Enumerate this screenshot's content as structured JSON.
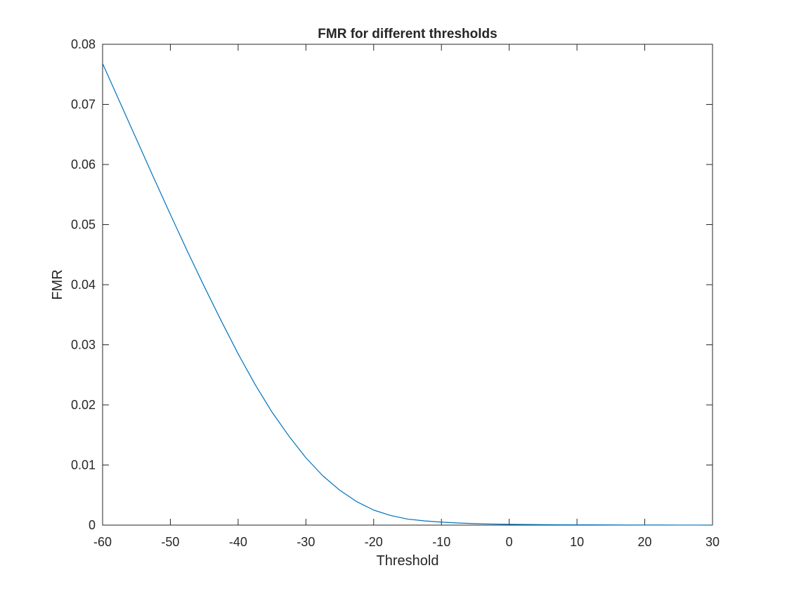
{
  "chart_data": {
    "type": "line",
    "title": "FMR for different thresholds",
    "xlabel": "Threshold",
    "ylabel": "FMR",
    "xlim": [
      -60,
      30
    ],
    "ylim": [
      0,
      0.08
    ],
    "xticks": [
      -60,
      -50,
      -40,
      -30,
      -20,
      -10,
      0,
      10,
      20,
      30
    ],
    "xtick_labels": [
      "-60",
      "-50",
      "-40",
      "-30",
      "-20",
      "-10",
      "0",
      "10",
      "20",
      "30"
    ],
    "yticks": [
      0,
      0.01,
      0.02,
      0.03,
      0.04,
      0.05,
      0.06,
      0.07,
      0.08
    ],
    "ytick_labels": [
      "0",
      "0.01",
      "0.02",
      "0.03",
      "0.04",
      "0.05",
      "0.06",
      "0.07",
      "0.08"
    ],
    "grid": false,
    "box": true,
    "series": [
      {
        "color": "#0072BD",
        "x": [
          -60,
          -57.5,
          -55,
          -52.5,
          -50,
          -47.5,
          -45,
          -42.5,
          -40,
          -37.5,
          -35,
          -32.5,
          -30,
          -27.5,
          -25,
          -22.5,
          -20,
          -17.5,
          -15,
          -12.5,
          -10,
          -7.5,
          -5,
          -2.5,
          0,
          2.5,
          5,
          7.5,
          10,
          12.5,
          15,
          17.5,
          20,
          22.5,
          25,
          27.5,
          30
        ],
        "y": [
          0.0768,
          0.0705,
          0.0642,
          0.0579,
          0.0517,
          0.0456,
          0.0397,
          0.034,
          0.0285,
          0.0234,
          0.0188,
          0.0148,
          0.0112,
          0.0082,
          0.0058,
          0.0039,
          0.0025,
          0.0016,
          0.001,
          0.0007,
          0.0005,
          0.00035,
          0.00025,
          0.00018,
          0.00013,
          0.0001,
          8e-05,
          6e-05,
          5e-05,
          4e-05,
          3e-05,
          2e-05,
          1.5e-05,
          1e-05,
          8e-06,
          5e-06,
          3e-06
        ]
      }
    ]
  }
}
